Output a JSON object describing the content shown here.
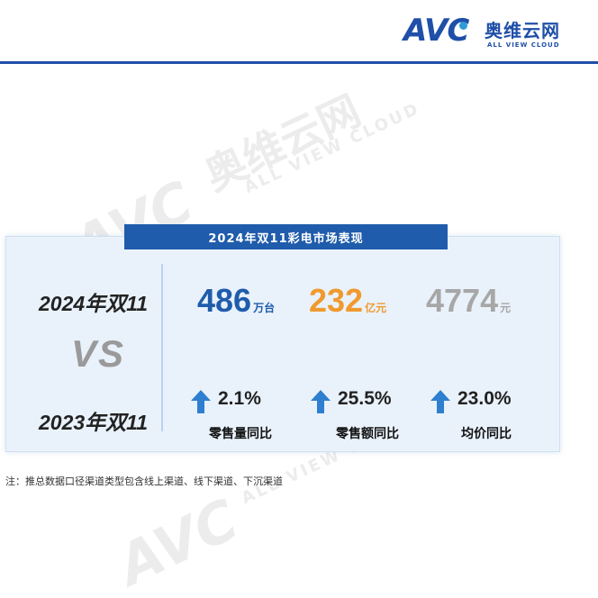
{
  "brand": {
    "logo_letters": "AVC",
    "name_cn": "奥维云网",
    "name_en": "ALL VIEW CLOUD",
    "color": "#1f4fa8"
  },
  "panel": {
    "title": "2024年双11彩电市场表现",
    "period_current": "2024年双11",
    "vs": "VS",
    "period_previous": "2023年双11",
    "metrics": [
      {
        "value": "486",
        "unit": "万台",
        "color": "#1f5cab"
      },
      {
        "value": "232",
        "unit": "亿元",
        "color": "#f09a2e"
      },
      {
        "value": "4774",
        "unit": "元",
        "color": "#a7a7a7"
      }
    ],
    "yoy": [
      {
        "pct": "2.1%",
        "label": "零售量同比",
        "icon": "up-arrow-icon"
      },
      {
        "pct": "25.5%",
        "label": "零售额同比",
        "icon": "up-arrow-icon"
      },
      {
        "pct": "23.0%",
        "label": "均价同比",
        "icon": "up-arrow-icon"
      }
    ]
  },
  "note": "注：推总数据口径渠道类型包含线上渠道、线下渠道、下沉渠道"
}
